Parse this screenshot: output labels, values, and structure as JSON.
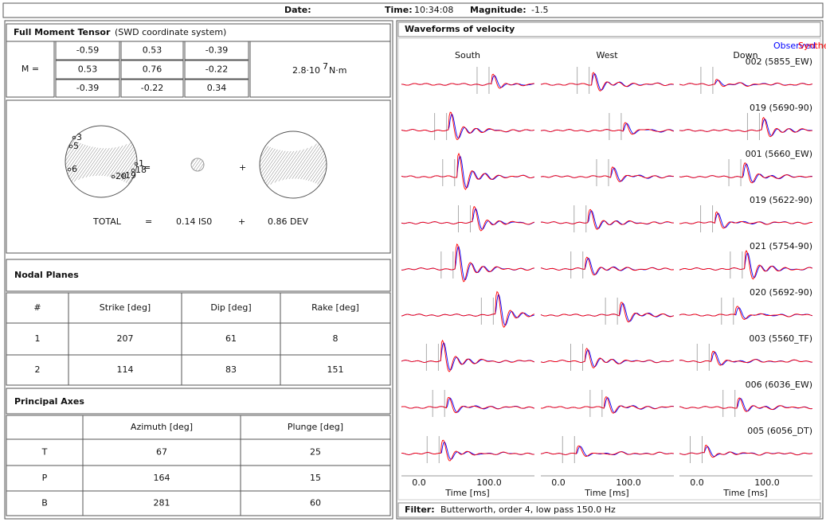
{
  "header": {
    "date_label": "Date:",
    "time_label": "Time:",
    "time": "10:34:08",
    "magnitude_label": "Magnitude:",
    "magnitude": -1.5
  },
  "moment_tensor": {
    "title": "Full Moment Tensor",
    "subtitle": "(SWD coordinate system)",
    "matrix_label": "M =",
    "matrix": [
      [
        -0.59,
        0.53,
        -0.39
      ],
      [
        0.53,
        0.76,
        -0.22
      ],
      [
        -0.39,
        -0.22,
        0.34
      ]
    ],
    "scalar": "2.8·10",
    "exponent": 7,
    "unit": "N·m"
  },
  "decomposition": {
    "station_labels": [
      "3",
      "5",
      "6",
      "1",
      "18",
      "20",
      "19"
    ],
    "equals": "=",
    "plus": "+",
    "total": "TOTAL",
    "iso": "0.14 IS0",
    "dev": "0.86 DEV"
  },
  "nodal_planes": {
    "title": "Nodal Planes",
    "columns": [
      "#",
      "Strike [deg]",
      "Dip [deg]",
      "Rake [deg]"
    ],
    "rows": [
      [
        1,
        207,
        61,
        8
      ],
      [
        2,
        114,
        83,
        151
      ]
    ]
  },
  "principal_axes": {
    "title": "Principal Axes",
    "columns": [
      "Azimuth [deg]",
      "Plunge [deg]"
    ],
    "rows": [
      [
        "T",
        67,
        25
      ],
      [
        "P",
        164,
        15
      ],
      [
        "B",
        281,
        60
      ]
    ]
  },
  "waveforms": {
    "title": "Waveforms of velocity",
    "legend": [
      "Observed",
      "Synthetic"
    ],
    "components": [
      "South",
      "West",
      "Down"
    ],
    "stations": [
      "002 (5855_EW)",
      "019 (5690-90)",
      "001 (5660_EW)",
      "019 (5622-90)",
      "021 (5754-90)",
      "020 (5692-90)",
      "003 (5560_TF)",
      "006 (6036_EW)",
      "005 (6056_DT)"
    ],
    "ticks": [
      "0.0",
      "100.0"
    ],
    "axis_label": "Time [ms]"
  },
  "filter": {
    "label": "Filter:",
    "text": "Butterworth, order 4, low pass 150.0 Hz"
  }
}
